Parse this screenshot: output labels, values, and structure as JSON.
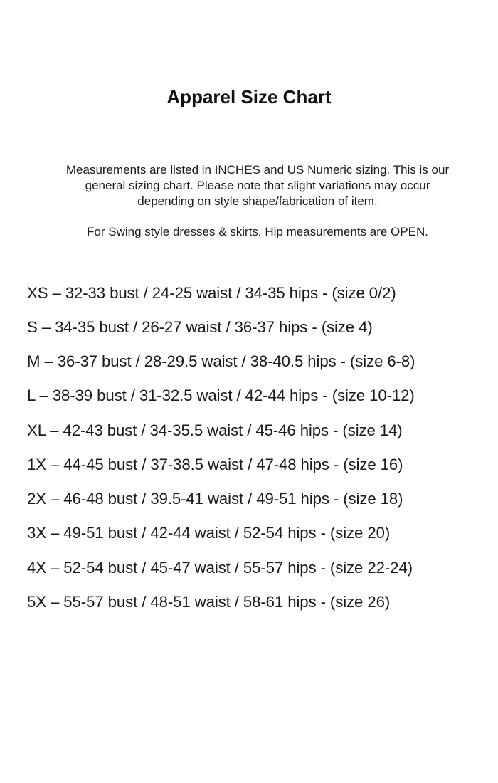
{
  "title": "Apparel Size Chart",
  "intro_lines": [
    "Measurements are listed in INCHES and US Numeric sizing. This is our",
    "general sizing chart. Please note that slight variations may occur",
    "depending on style shape/fabrication of item."
  ],
  "swing_note": "For Swing style dresses & skirts, Hip measurements are OPEN.",
  "sizes": [
    "XS – 32-33 bust / 24-25 waist / 34-35 hips - (size 0/2)",
    "S – 34-35 bust / 26-27 waist / 36-37 hips - (size 4)",
    "M – 36-37 bust / 28-29.5 waist / 38-40.5 hips - (size 6-8)",
    "L – 38-39 bust / 31-32.5 waist / 42-44 hips - (size 10-12)",
    "XL – 42-43 bust / 34-35.5 waist / 45-46 hips - (size 14)",
    "1X – 44-45 bust / 37-38.5 waist / 47-48 hips - (size 16)",
    "2X – 46-48 bust / 39.5-41 waist / 49-51 hips - (size 18)",
    "3X – 49-51 bust / 42-44 waist / 52-54 hips - (size 20)",
    "4X – 52-54 bust / 45-47 waist / 55-57 hips - (size 22-24)",
    "5X – 55-57 bust / 48-51 waist / 58-61 hips - (size 26)"
  ]
}
